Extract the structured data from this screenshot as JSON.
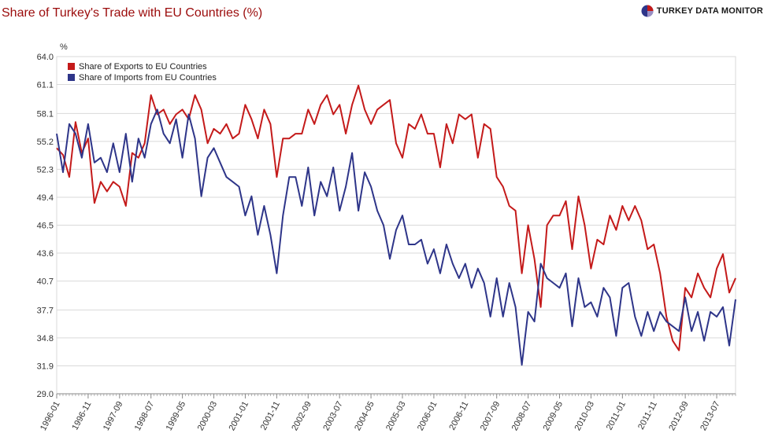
{
  "chart_data": {
    "type": "line",
    "title": "Share of Turkey's Trade with EU Countries (%)",
    "brand": "TURKEY DATA MONITOR",
    "y_unit": "%",
    "ylim": [
      29.0,
      64.0
    ],
    "y_ticks": [
      "29.0",
      "31.9",
      "34.8",
      "37.7",
      "40.7",
      "43.6",
      "46.5",
      "49.4",
      "52.3",
      "55.2",
      "58.1",
      "61.1",
      "64.0"
    ],
    "x_tick_labels": [
      "1996-01",
      "1996-11",
      "1997-09",
      "1998-07",
      "1999-05",
      "2000-03",
      "2001-01",
      "2001-11",
      "2002-09",
      "2003-07",
      "2004-05",
      "2005-03",
      "2006-01",
      "2006-11",
      "2007-09",
      "2008-07",
      "2009-05",
      "2010-03",
      "2011-01",
      "2011-11",
      "2012-09",
      "2013-07"
    ],
    "x_start": "1996-01",
    "x_end": "2014-01",
    "grid": true,
    "legend_position": "top-left",
    "colors": {
      "exports": "#c41a1a",
      "imports": "#2e3589",
      "grid": "#d9d9d9",
      "axis": "#888888",
      "title": "#9b0b0b"
    },
    "series": [
      {
        "name": "Share of Exports to EU Countries",
        "key": "exports",
        "anchors": [
          [
            "1996-01",
            54.5
          ],
          [
            "1996-03",
            53.8
          ],
          [
            "1996-05",
            51.5
          ],
          [
            "1996-07",
            57.2
          ],
          [
            "1996-09",
            54.0
          ],
          [
            "1996-11",
            55.5
          ],
          [
            "1997-01",
            48.8
          ],
          [
            "1997-03",
            51.0
          ],
          [
            "1997-05",
            50.0
          ],
          [
            "1997-07",
            51.0
          ],
          [
            "1997-09",
            50.5
          ],
          [
            "1997-11",
            48.5
          ],
          [
            "1998-01",
            54.0
          ],
          [
            "1998-03",
            53.5
          ],
          [
            "1998-05",
            55.0
          ],
          [
            "1998-07",
            60.0
          ],
          [
            "1998-09",
            58.0
          ],
          [
            "1998-11",
            58.5
          ],
          [
            "1999-01",
            57.0
          ],
          [
            "1999-03",
            58.0
          ],
          [
            "1999-05",
            58.5
          ],
          [
            "1999-07",
            57.5
          ],
          [
            "1999-09",
            60.0
          ],
          [
            "1999-11",
            58.5
          ],
          [
            "2000-01",
            55.0
          ],
          [
            "2000-03",
            56.5
          ],
          [
            "2000-05",
            56.0
          ],
          [
            "2000-07",
            57.0
          ],
          [
            "2000-09",
            55.5
          ],
          [
            "2000-11",
            56.0
          ],
          [
            "2001-01",
            59.0
          ],
          [
            "2001-03",
            57.5
          ],
          [
            "2001-05",
            55.5
          ],
          [
            "2001-07",
            58.5
          ],
          [
            "2001-09",
            57.0
          ],
          [
            "2001-11",
            51.5
          ],
          [
            "2002-01",
            55.5
          ],
          [
            "2002-03",
            55.5
          ],
          [
            "2002-05",
            56.0
          ],
          [
            "2002-07",
            56.0
          ],
          [
            "2002-09",
            58.5
          ],
          [
            "2002-11",
            57.0
          ],
          [
            "2003-01",
            59.0
          ],
          [
            "2003-03",
            60.0
          ],
          [
            "2003-05",
            58.0
          ],
          [
            "2003-07",
            59.0
          ],
          [
            "2003-09",
            56.0
          ],
          [
            "2003-11",
            59.0
          ],
          [
            "2004-01",
            61.0
          ],
          [
            "2004-03",
            58.5
          ],
          [
            "2004-05",
            57.0
          ],
          [
            "2004-07",
            58.5
          ],
          [
            "2004-09",
            59.0
          ],
          [
            "2004-11",
            59.5
          ],
          [
            "2005-01",
            55.0
          ],
          [
            "2005-03",
            53.5
          ],
          [
            "2005-05",
            57.0
          ],
          [
            "2005-07",
            56.5
          ],
          [
            "2005-09",
            58.0
          ],
          [
            "2005-11",
            56.0
          ],
          [
            "2006-01",
            56.0
          ],
          [
            "2006-03",
            52.5
          ],
          [
            "2006-05",
            57.0
          ],
          [
            "2006-07",
            55.0
          ],
          [
            "2006-09",
            58.0
          ],
          [
            "2006-11",
            57.5
          ],
          [
            "2007-01",
            58.0
          ],
          [
            "2007-03",
            53.5
          ],
          [
            "2007-05",
            57.0
          ],
          [
            "2007-07",
            56.5
          ],
          [
            "2007-09",
            51.5
          ],
          [
            "2007-11",
            50.5
          ],
          [
            "2008-01",
            48.5
          ],
          [
            "2008-03",
            48.0
          ],
          [
            "2008-05",
            41.5
          ],
          [
            "2008-07",
            46.5
          ],
          [
            "2008-09",
            43.0
          ],
          [
            "2008-11",
            38.0
          ],
          [
            "2009-01",
            46.5
          ],
          [
            "2009-03",
            47.5
          ],
          [
            "2009-05",
            47.5
          ],
          [
            "2009-07",
            49.0
          ],
          [
            "2009-09",
            44.0
          ],
          [
            "2009-11",
            49.5
          ],
          [
            "2010-01",
            46.5
          ],
          [
            "2010-03",
            42.0
          ],
          [
            "2010-05",
            45.0
          ],
          [
            "2010-07",
            44.5
          ],
          [
            "2010-09",
            47.5
          ],
          [
            "2010-11",
            46.0
          ],
          [
            "2011-01",
            48.5
          ],
          [
            "2011-03",
            47.0
          ],
          [
            "2011-05",
            48.5
          ],
          [
            "2011-07",
            47.0
          ],
          [
            "2011-09",
            44.0
          ],
          [
            "2011-11",
            44.5
          ],
          [
            "2012-01",
            41.5
          ],
          [
            "2012-03",
            37.0
          ],
          [
            "2012-05",
            34.5
          ],
          [
            "2012-07",
            33.5
          ],
          [
            "2012-09",
            40.0
          ],
          [
            "2012-11",
            39.0
          ],
          [
            "2013-01",
            41.5
          ],
          [
            "2013-03",
            40.0
          ],
          [
            "2013-05",
            39.0
          ],
          [
            "2013-07",
            42.0
          ],
          [
            "2013-09",
            43.5
          ],
          [
            "2013-11",
            39.5
          ],
          [
            "2014-01",
            41.0
          ]
        ]
      },
      {
        "name": "Share of Imports from EU Countries",
        "key": "imports",
        "anchors": [
          [
            "1996-01",
            56.0
          ],
          [
            "1996-03",
            52.0
          ],
          [
            "1996-05",
            57.0
          ],
          [
            "1996-07",
            56.0
          ],
          [
            "1996-09",
            53.5
          ],
          [
            "1996-11",
            57.0
          ],
          [
            "1997-01",
            53.0
          ],
          [
            "1997-03",
            53.5
          ],
          [
            "1997-05",
            52.0
          ],
          [
            "1997-07",
            55.0
          ],
          [
            "1997-09",
            52.0
          ],
          [
            "1997-11",
            56.0
          ],
          [
            "1998-01",
            51.0
          ],
          [
            "1998-03",
            55.5
          ],
          [
            "1998-05",
            53.5
          ],
          [
            "1998-07",
            57.0
          ],
          [
            "1998-09",
            58.5
          ],
          [
            "1998-11",
            56.0
          ],
          [
            "1999-01",
            55.0
          ],
          [
            "1999-03",
            57.5
          ],
          [
            "1999-05",
            53.5
          ],
          [
            "1999-07",
            58.0
          ],
          [
            "1999-09",
            55.5
          ],
          [
            "1999-11",
            49.5
          ],
          [
            "2000-01",
            53.5
          ],
          [
            "2000-03",
            54.5
          ],
          [
            "2000-05",
            53.0
          ],
          [
            "2000-07",
            51.5
          ],
          [
            "2000-09",
            51.0
          ],
          [
            "2000-11",
            50.5
          ],
          [
            "2001-01",
            47.5
          ],
          [
            "2001-03",
            49.5
          ],
          [
            "2001-05",
            45.5
          ],
          [
            "2001-07",
            48.5
          ],
          [
            "2001-09",
            45.5
          ],
          [
            "2001-11",
            41.5
          ],
          [
            "2002-01",
            47.5
          ],
          [
            "2002-03",
            51.5
          ],
          [
            "2002-05",
            51.5
          ],
          [
            "2002-07",
            48.5
          ],
          [
            "2002-09",
            52.5
          ],
          [
            "2002-11",
            47.5
          ],
          [
            "2003-01",
            51.0
          ],
          [
            "2003-03",
            49.5
          ],
          [
            "2003-05",
            52.5
          ],
          [
            "2003-07",
            48.0
          ],
          [
            "2003-09",
            50.5
          ],
          [
            "2003-11",
            54.0
          ],
          [
            "2004-01",
            48.0
          ],
          [
            "2004-03",
            52.0
          ],
          [
            "2004-05",
            50.5
          ],
          [
            "2004-07",
            48.0
          ],
          [
            "2004-09",
            46.5
          ],
          [
            "2004-11",
            43.0
          ],
          [
            "2005-01",
            46.0
          ],
          [
            "2005-03",
            47.5
          ],
          [
            "2005-05",
            44.5
          ],
          [
            "2005-07",
            44.5
          ],
          [
            "2005-09",
            45.0
          ],
          [
            "2005-11",
            42.5
          ],
          [
            "2006-01",
            44.0
          ],
          [
            "2006-03",
            41.5
          ],
          [
            "2006-05",
            44.5
          ],
          [
            "2006-07",
            42.5
          ],
          [
            "2006-09",
            41.0
          ],
          [
            "2006-11",
            42.5
          ],
          [
            "2007-01",
            40.0
          ],
          [
            "2007-03",
            42.0
          ],
          [
            "2007-05",
            40.5
          ],
          [
            "2007-07",
            37.0
          ],
          [
            "2007-09",
            41.0
          ],
          [
            "2007-11",
            37.0
          ],
          [
            "2008-01",
            40.5
          ],
          [
            "2008-03",
            38.0
          ],
          [
            "2008-05",
            32.0
          ],
          [
            "2008-07",
            37.5
          ],
          [
            "2008-09",
            36.5
          ],
          [
            "2008-11",
            42.5
          ],
          [
            "2009-01",
            41.0
          ],
          [
            "2009-03",
            40.5
          ],
          [
            "2009-05",
            40.0
          ],
          [
            "2009-07",
            41.5
          ],
          [
            "2009-09",
            36.0
          ],
          [
            "2009-11",
            41.0
          ],
          [
            "2010-01",
            38.0
          ],
          [
            "2010-03",
            38.5
          ],
          [
            "2010-05",
            37.0
          ],
          [
            "2010-07",
            40.0
          ],
          [
            "2010-09",
            39.0
          ],
          [
            "2010-11",
            35.0
          ],
          [
            "2011-01",
            40.0
          ],
          [
            "2011-03",
            40.5
          ],
          [
            "2011-05",
            37.0
          ],
          [
            "2011-07",
            35.0
          ],
          [
            "2011-09",
            37.5
          ],
          [
            "2011-11",
            35.5
          ],
          [
            "2012-01",
            37.5
          ],
          [
            "2012-03",
            36.5
          ],
          [
            "2012-05",
            36.0
          ],
          [
            "2012-07",
            35.5
          ],
          [
            "2012-09",
            39.0
          ],
          [
            "2012-11",
            35.5
          ],
          [
            "2013-01",
            37.5
          ],
          [
            "2013-03",
            34.5
          ],
          [
            "2013-05",
            37.5
          ],
          [
            "2013-07",
            37.0
          ],
          [
            "2013-09",
            38.0
          ],
          [
            "2013-11",
            34.0
          ],
          [
            "2014-01",
            38.8
          ]
        ]
      }
    ]
  }
}
